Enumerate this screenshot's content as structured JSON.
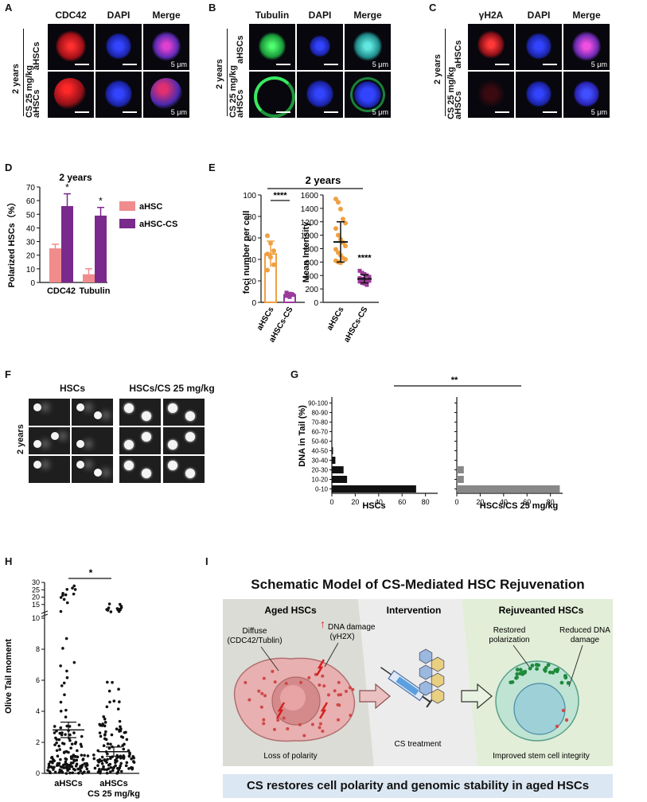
{
  "panels": [
    "A",
    "B",
    "C",
    "D",
    "E",
    "F",
    "G",
    "H",
    "I"
  ],
  "panelA": {
    "columns": [
      "CDC42",
      "DAPI",
      "Merge"
    ],
    "rows": [
      "aHSCs",
      "aHSCs"
    ],
    "group_top": "2 years",
    "group_bottom": "CS 25 mg/kg",
    "scale": "5 μm",
    "colors": {
      "cdc42": "#e0242a",
      "dapi": "#2a3be0",
      "merge": "#c03ab0"
    }
  },
  "panelB": {
    "columns": [
      "Tubulin",
      "DAPI",
      "Merge"
    ],
    "rows": [
      "aHSCs",
      "aHSCs"
    ],
    "group_top": "2 years",
    "group_bottom": "CS 25 mg/kg",
    "scale": "5 μm",
    "colors": {
      "tubulin": "#2ed25a",
      "dapi": "#2a3be0",
      "merge": "#38c8c8"
    }
  },
  "panelC": {
    "columns": [
      "γH2A",
      "DAPI",
      "Merge"
    ],
    "rows": [
      "aHSCs",
      "aHSCs"
    ],
    "group_top": "2 years",
    "group_bottom": "CS 25 mg/kg",
    "scale": "5 μm"
  },
  "panelD": {
    "chart_data": {
      "type": "bar",
      "title": "2 years",
      "ylabel": "Polarized HSCs（%）",
      "categories": [
        "CDC42",
        "Tubulin"
      ],
      "series": [
        {
          "name": "aHSC",
          "values": [
            25,
            6
          ],
          "errors": [
            3,
            4
          ],
          "color": "#f08c8c"
        },
        {
          "name": "aHSC-CS",
          "values": [
            56,
            49
          ],
          "errors": [
            9,
            6
          ],
          "color": "#7a2a8c"
        }
      ],
      "ylim": [
        0,
        70
      ],
      "yticks": [
        0,
        10,
        20,
        30,
        40,
        50,
        60,
        70
      ],
      "annotations": [
        "*",
        "*"
      ],
      "legend": "right"
    }
  },
  "panelE": {
    "title": "2 years",
    "chart_data": [
      {
        "type": "bar",
        "ylabel": "foci number per cell",
        "categories": [
          "aHSCs",
          "aHSCs-CS"
        ],
        "values": [
          45,
          7
        ],
        "errors": [
          12,
          2
        ],
        "points": [
          [
            62,
            55,
            48,
            45,
            42,
            35,
            30
          ],
          [
            9,
            8,
            7,
            6,
            5,
            7,
            8
          ]
        ],
        "ylim": [
          0,
          100
        ],
        "yticks": [
          0,
          20,
          40,
          60,
          80,
          100
        ],
        "significance": "****",
        "colors": [
          "#f0a040",
          "#9a3a9a"
        ]
      },
      {
        "type": "scatter",
        "ylabel": "Mean Intensity",
        "categories": [
          "aHSCs",
          "aHSCs-CS"
        ],
        "means": [
          900,
          350
        ],
        "sd": [
          300,
          60
        ],
        "points": [
          [
            1540,
            1490,
            1390,
            1240,
            1180,
            1100,
            1000,
            940,
            890,
            840,
            790,
            740,
            700,
            660,
            640,
            620,
            600,
            590
          ],
          [
            470,
            440,
            420,
            400,
            380,
            360,
            350,
            340,
            330,
            320,
            310,
            290,
            280,
            260
          ]
        ],
        "ylim": [
          0,
          1600
        ],
        "yticks": [
          0,
          200,
          400,
          600,
          800,
          1000,
          1200,
          1400,
          1600
        ],
        "significance": "****",
        "colors": [
          "#f0a040",
          "#9a3a9a"
        ]
      }
    ]
  },
  "panelF": {
    "columns": [
      "HSCs",
      "HSCs/CS 25 mg/kg"
    ],
    "row_label": "2 years"
  },
  "panelG": {
    "chart_data": {
      "type": "bar",
      "ylabel": "DNA in Tail (%)",
      "categories": [
        "0-10",
        "10-20",
        "20-30",
        "30-40",
        "40-50",
        "50-60",
        "60-70",
        "70-80",
        "80-90",
        "90-100"
      ],
      "series": [
        {
          "name": "HSCs",
          "values": [
            72,
            13,
            10,
            3,
            1,
            0,
            0,
            0,
            0,
            0
          ],
          "color": "#111111"
        },
        {
          "name": "HSCs/CS 25 mg/kg",
          "values": [
            88,
            6,
            6,
            0,
            0,
            0,
            0,
            0,
            0,
            0
          ],
          "color": "#888888"
        }
      ],
      "xticks_left": [
        0,
        20,
        40,
        60,
        80
      ],
      "xticks_right": [
        0,
        20,
        40,
        60,
        80
      ],
      "xlim": [
        0,
        85
      ],
      "significance": "**"
    }
  },
  "panelH": {
    "chart_data": {
      "type": "scatter",
      "ylabel": "Olive Tail moment",
      "categories": [
        "aHSCs",
        "aHSCs\nCS 25 mg/kg"
      ],
      "category_labels": [
        "aHSCs",
        "aHSCs",
        "CS 25 mg/kg"
      ],
      "means": [
        2.8,
        1.4
      ],
      "sem": [
        0.5,
        0.3
      ],
      "yticks": [
        0,
        2,
        4,
        6,
        8,
        10,
        15,
        20,
        25,
        30
      ],
      "significance": "*"
    }
  },
  "panelI": {
    "title": "Schematic Model of CS-Mediated HSC Rejuvenation",
    "sections": {
      "aged": "Aged HSCs",
      "intervention": "Intervention",
      "rejuvenated": "Rejuveanted HSCs"
    },
    "labels": {
      "diffuse": "Diffuse",
      "diffuse2": "(CDC42/Tublin)",
      "dna_damage": "DNA damage",
      "dna_damage2": "(γH2X)",
      "loss": "Loss of polarity",
      "cs_treatment": "CS treatment",
      "restored": "Restored",
      "restored2": "polarization",
      "reduced": "Reduced DNA",
      "reduced2": "damage",
      "improved": "Improved stem cell integrity"
    },
    "banner": "CS restores cell polarity and genomic stability in aged HSCs"
  }
}
